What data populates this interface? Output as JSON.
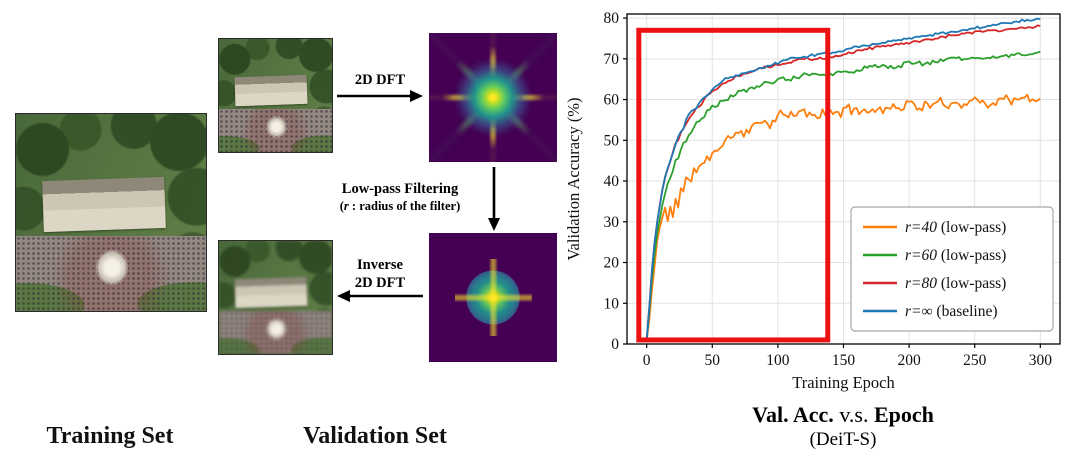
{
  "labels": {
    "training_set": "Training Set",
    "validation_set": "Validation Set"
  },
  "pipeline": {
    "dft": "2D DFT",
    "lowpass_line1": "Low-pass Filtering",
    "lowpass_pre": "(",
    "lowpass_math": "r",
    "lowpass_rest": " : radius of the filter)",
    "inverse_line1": "Inverse",
    "inverse_line2": "2D DFT"
  },
  "caption": {
    "bold1": "Val. Acc.",
    "mid": " v.s. ",
    "bold2": "Epoch",
    "subtitle": "(DeiT-S)"
  },
  "chart_data": {
    "type": "line",
    "title": "Val. Acc. v.s. Epoch (DeiT-S)",
    "xlabel": "Training Epoch",
    "ylabel": "Validation Accuracy (%)",
    "xlim": [
      -15,
      315
    ],
    "ylim": [
      0,
      81
    ],
    "xticks": [
      0,
      50,
      100,
      150,
      200,
      250,
      300
    ],
    "yticks": [
      0,
      10,
      20,
      30,
      40,
      50,
      60,
      70,
      80
    ],
    "grid": true,
    "legend_position": "lower-right-inside",
    "highlight_rect": {
      "x0": -6,
      "x1": 138,
      "y0": 1,
      "y1": 77,
      "color": "#ee1111",
      "linewidth": 5
    },
    "series": [
      {
        "name": "r=40 (low-pass)",
        "math": "r=40",
        "rest": " (low-pass)",
        "color": "#ff7f0e",
        "noise": 1.6,
        "points": [
          [
            0,
            1
          ],
          [
            2,
            6
          ],
          [
            4,
            13
          ],
          [
            6,
            19
          ],
          [
            8,
            25
          ],
          [
            10,
            29
          ],
          [
            12,
            31
          ],
          [
            14,
            33
          ],
          [
            16,
            30
          ],
          [
            18,
            34
          ],
          [
            20,
            32
          ],
          [
            22,
            36
          ],
          [
            24,
            34
          ],
          [
            26,
            38
          ],
          [
            28,
            37
          ],
          [
            30,
            40
          ],
          [
            34,
            41
          ],
          [
            38,
            43
          ],
          [
            42,
            44
          ],
          [
            46,
            45
          ],
          [
            50,
            47
          ],
          [
            55,
            48
          ],
          [
            60,
            50
          ],
          [
            65,
            51
          ],
          [
            70,
            52
          ],
          [
            75,
            52
          ],
          [
            80,
            53
          ],
          [
            85,
            54
          ],
          [
            90,
            55
          ],
          [
            95,
            54
          ],
          [
            100,
            56
          ],
          [
            110,
            56
          ],
          [
            120,
            57
          ],
          [
            130,
            56
          ],
          [
            140,
            57
          ],
          [
            150,
            57
          ],
          [
            160,
            58
          ],
          [
            170,
            57
          ],
          [
            180,
            58
          ],
          [
            190,
            58
          ],
          [
            200,
            59
          ],
          [
            210,
            58
          ],
          [
            220,
            59
          ],
          [
            230,
            59
          ],
          [
            240,
            59
          ],
          [
            250,
            60
          ],
          [
            260,
            59
          ],
          [
            270,
            60
          ],
          [
            280,
            60
          ],
          [
            290,
            60
          ],
          [
            300,
            60
          ]
        ]
      },
      {
        "name": "r=60 (low-pass)",
        "math": "r=60",
        "rest": " (low-pass)",
        "color": "#2ca02c",
        "noise": 0.7,
        "points": [
          [
            0,
            1
          ],
          [
            2,
            8
          ],
          [
            4,
            16
          ],
          [
            6,
            22
          ],
          [
            8,
            27
          ],
          [
            10,
            31
          ],
          [
            12,
            34
          ],
          [
            14,
            37
          ],
          [
            16,
            39
          ],
          [
            18,
            41
          ],
          [
            20,
            43
          ],
          [
            22,
            45
          ],
          [
            24,
            46
          ],
          [
            26,
            48
          ],
          [
            28,
            49
          ],
          [
            30,
            50
          ],
          [
            34,
            52
          ],
          [
            38,
            54
          ],
          [
            42,
            55
          ],
          [
            46,
            57
          ],
          [
            50,
            58
          ],
          [
            55,
            59
          ],
          [
            60,
            60
          ],
          [
            65,
            61
          ],
          [
            70,
            62
          ],
          [
            75,
            62
          ],
          [
            80,
            63
          ],
          [
            85,
            63
          ],
          [
            90,
            64
          ],
          [
            95,
            64
          ],
          [
            100,
            65
          ],
          [
            110,
            65
          ],
          [
            120,
            66
          ],
          [
            130,
            66
          ],
          [
            140,
            66
          ],
          [
            150,
            67
          ],
          [
            160,
            67
          ],
          [
            170,
            68
          ],
          [
            180,
            68
          ],
          [
            190,
            68
          ],
          [
            200,
            69
          ],
          [
            210,
            69
          ],
          [
            220,
            69
          ],
          [
            230,
            70
          ],
          [
            240,
            70
          ],
          [
            250,
            70
          ],
          [
            260,
            70
          ],
          [
            270,
            71
          ],
          [
            280,
            71
          ],
          [
            290,
            71
          ],
          [
            300,
            71.5
          ]
        ]
      },
      {
        "name": "r=80 (low-pass)",
        "math": "r=80",
        "rest": " (low-pass)",
        "color": "#d62728",
        "noise": 0.45,
        "points": [
          [
            0,
            1
          ],
          [
            2,
            9
          ],
          [
            4,
            18
          ],
          [
            6,
            25
          ],
          [
            8,
            30
          ],
          [
            10,
            34
          ],
          [
            12,
            38
          ],
          [
            14,
            41
          ],
          [
            16,
            43
          ],
          [
            18,
            45
          ],
          [
            20,
            47
          ],
          [
            22,
            49
          ],
          [
            24,
            50
          ],
          [
            26,
            52
          ],
          [
            28,
            53
          ],
          [
            30,
            54
          ],
          [
            34,
            56
          ],
          [
            38,
            58
          ],
          [
            42,
            59
          ],
          [
            46,
            61
          ],
          [
            50,
            62
          ],
          [
            55,
            63
          ],
          [
            60,
            64
          ],
          [
            65,
            65
          ],
          [
            70,
            66
          ],
          [
            75,
            66.5
          ],
          [
            80,
            67
          ],
          [
            85,
            67.5
          ],
          [
            90,
            68
          ],
          [
            95,
            68
          ],
          [
            100,
            68.5
          ],
          [
            110,
            69
          ],
          [
            120,
            70
          ],
          [
            130,
            70
          ],
          [
            140,
            70.5
          ],
          [
            150,
            71
          ],
          [
            160,
            72
          ],
          [
            170,
            72.5
          ],
          [
            180,
            73
          ],
          [
            190,
            73.5
          ],
          [
            200,
            74
          ],
          [
            210,
            74.5
          ],
          [
            220,
            75
          ],
          [
            230,
            75.5
          ],
          [
            240,
            76
          ],
          [
            250,
            76.5
          ],
          [
            260,
            77
          ],
          [
            270,
            77
          ],
          [
            280,
            77.5
          ],
          [
            290,
            77.8
          ],
          [
            300,
            78
          ]
        ]
      },
      {
        "name": "r=∞ (baseline)",
        "math": "r=∞",
        "rest": " (baseline)",
        "color": "#1f77b4",
        "noise": 0.4,
        "points": [
          [
            0,
            1
          ],
          [
            2,
            9
          ],
          [
            4,
            18
          ],
          [
            6,
            25
          ],
          [
            8,
            30
          ],
          [
            10,
            34
          ],
          [
            12,
            38
          ],
          [
            14,
            41
          ],
          [
            16,
            43
          ],
          [
            18,
            45
          ],
          [
            20,
            47
          ],
          [
            22,
            49
          ],
          [
            24,
            51
          ],
          [
            26,
            52
          ],
          [
            28,
            53
          ],
          [
            30,
            55
          ],
          [
            34,
            57
          ],
          [
            38,
            58
          ],
          [
            42,
            60
          ],
          [
            46,
            61
          ],
          [
            50,
            62.5
          ],
          [
            55,
            64
          ],
          [
            60,
            65
          ],
          [
            65,
            65.5
          ],
          [
            70,
            66
          ],
          [
            75,
            66.5
          ],
          [
            80,
            67
          ],
          [
            85,
            67.5
          ],
          [
            90,
            68
          ],
          [
            95,
            68.5
          ],
          [
            100,
            69
          ],
          [
            110,
            70
          ],
          [
            120,
            70.5
          ],
          [
            130,
            71
          ],
          [
            140,
            71.5
          ],
          [
            150,
            72
          ],
          [
            160,
            73
          ],
          [
            170,
            73.5
          ],
          [
            180,
            74
          ],
          [
            190,
            74.5
          ],
          [
            200,
            75
          ],
          [
            210,
            75.5
          ],
          [
            220,
            76
          ],
          [
            230,
            76.5
          ],
          [
            240,
            77
          ],
          [
            250,
            77.5
          ],
          [
            260,
            78
          ],
          [
            270,
            78.5
          ],
          [
            280,
            79
          ],
          [
            290,
            79.5
          ],
          [
            300,
            79.8
          ]
        ]
      }
    ]
  }
}
